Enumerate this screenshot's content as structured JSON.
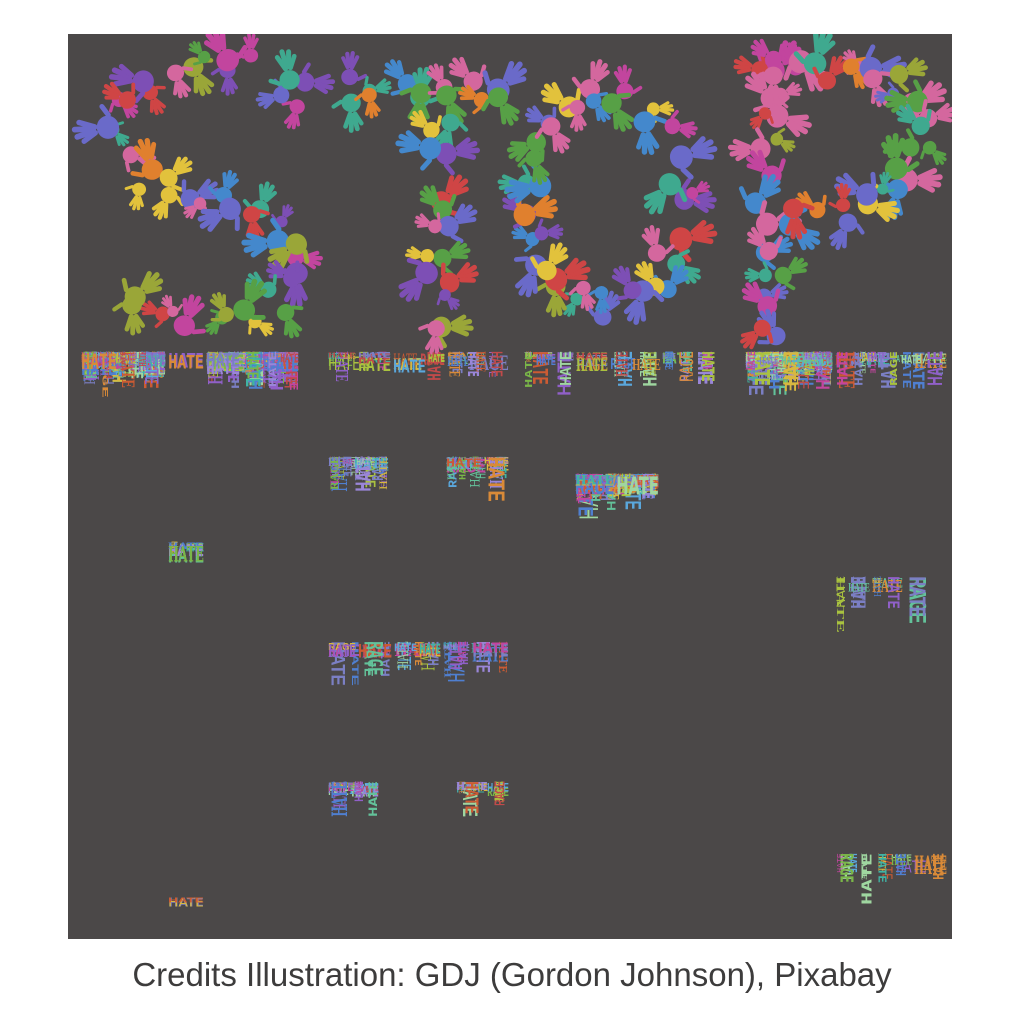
{
  "poster": {
    "title_top": "STOP",
    "title_bottom": "HATE",
    "background_color": "#4b4848",
    "page_background": "#ffffff",
    "hand_palette": [
      "#cf4545",
      "#e0802e",
      "#e2c23c",
      "#9aa638",
      "#57a046",
      "#3fa98f",
      "#4488cc",
      "#7d4fb5",
      "#c2459e",
      "#d4679e",
      "#6a6ac9"
    ],
    "word_palette": [
      "#7b7fc4",
      "#7b7fc4",
      "#9a86d8",
      "#4f7fd0",
      "#5aa7dc",
      "#3fb4a5",
      "#63c29a",
      "#9fd6a0",
      "#7ab648",
      "#a9c23f",
      "#d8b840",
      "#d98a38",
      "#cc5b33",
      "#c2459e",
      "#9060c8",
      "#9060c8",
      "#c04a4a"
    ],
    "words": [
      {
        "text": "HATE",
        "weight": 0.93
      },
      {
        "text": "RAGE",
        "weight": 0.07
      }
    ]
  },
  "caption": {
    "text": "Credits Illustration: GDJ (Gordon Johnson), Pixabay"
  }
}
